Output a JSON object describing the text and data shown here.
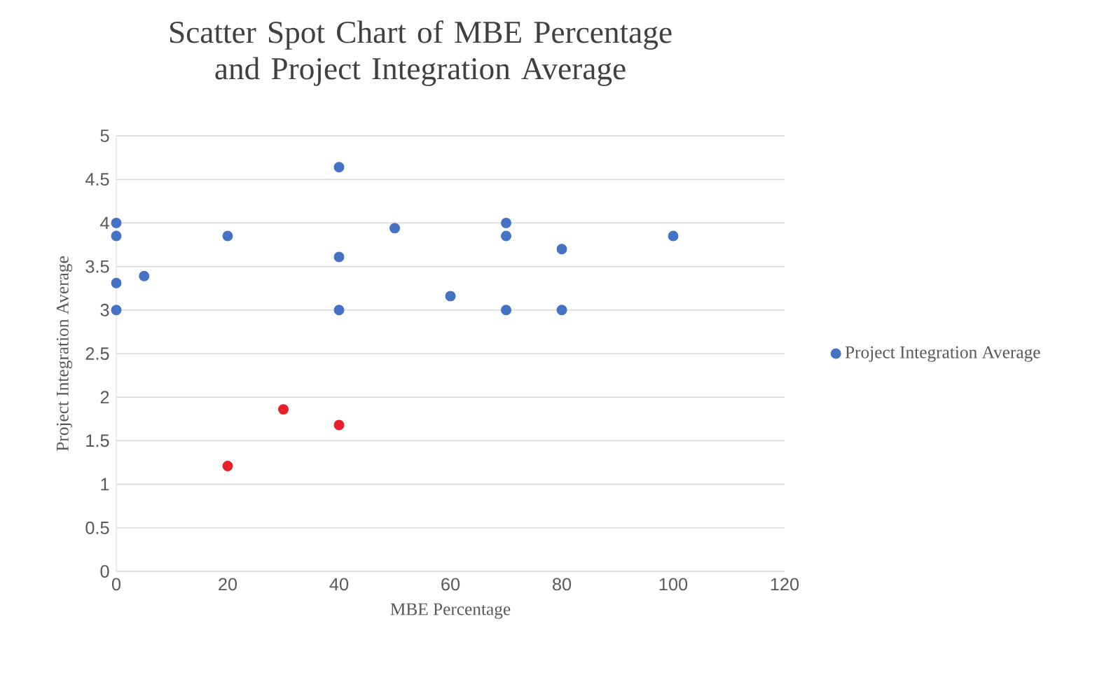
{
  "chart_data": {
    "type": "scatter",
    "title": "Scatter Spot Chart of MBE Percentage and Project Integration Average",
    "xlabel": "MBE Percentage",
    "ylabel": "Project Integration Average",
    "series": [
      {
        "name": "Project Integration Average",
        "color": "#4472c4",
        "x": [
          0,
          0,
          0,
          0,
          5,
          20,
          20,
          30,
          40,
          40,
          40,
          40,
          50,
          60,
          70,
          70,
          70,
          80,
          80,
          100
        ],
        "values": [
          4.0,
          3.85,
          3.31,
          3.0,
          3.39,
          3.85,
          1.21,
          1.86,
          4.64,
          3.61,
          3.0,
          1.68,
          3.94,
          3.16,
          4.0,
          3.85,
          3.0,
          3.7,
          3.0,
          3.85
        ],
        "colors": [
          "#4472c4",
          "#4472c4",
          "#4472c4",
          "#4472c4",
          "#4472c4",
          "#4472c4",
          "#e8202a",
          "#e8202a",
          "#4472c4",
          "#4472c4",
          "#4472c4",
          "#e8202a",
          "#4472c4",
          "#4472c4",
          "#4472c4",
          "#4472c4",
          "#4472c4",
          "#4472c4",
          "#4472c4",
          "#4472c4"
        ]
      }
    ],
    "xlim": [
      0,
      120
    ],
    "xticks": [
      0,
      20,
      40,
      60,
      80,
      100,
      120
    ],
    "ylim": [
      0,
      5
    ],
    "yticks": [
      0,
      0.5,
      1,
      1.5,
      2,
      2.5,
      3,
      3.5,
      4,
      4.5,
      5
    ],
    "grid": "y",
    "legend": "right",
    "marker": "circle"
  }
}
